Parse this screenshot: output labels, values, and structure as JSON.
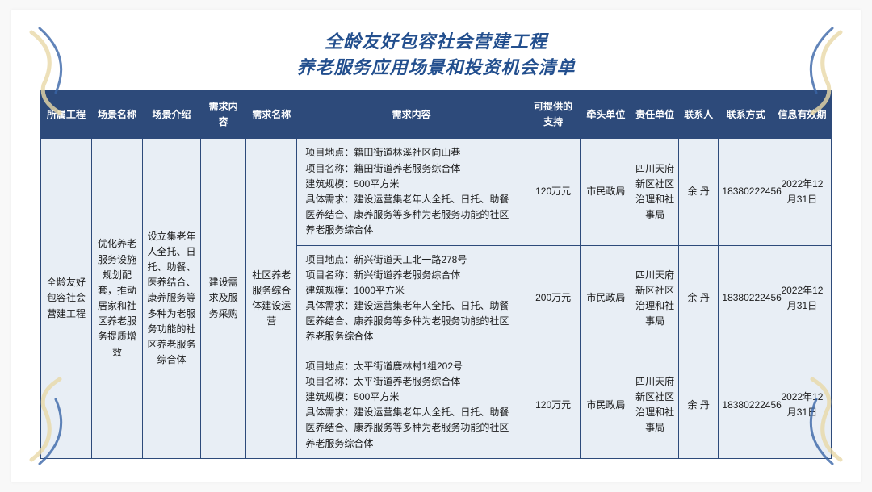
{
  "colors": {
    "title": "#234f8e",
    "header_bg": "#2d4a7a",
    "cell_bg": "#e8eef5",
    "border": "#2d4a7a",
    "deco1": "#e9d9a8",
    "deco2": "#3a66a8"
  },
  "title": {
    "line1": "全龄友好包容社会营建工程",
    "line2": "养老服务应用场景和投资机会清单"
  },
  "columns": [
    "所属工程",
    "场景名称",
    "场景介绍",
    "需求内容",
    "需求名称",
    "需求内容",
    "可提供的支持",
    "牵头单位",
    "责任单位",
    "联系人",
    "联系方式",
    "信息有效期"
  ],
  "merged": {
    "project": "全龄友好包容社会营建工程",
    "scene_name": "优化养老服务设施规划配套，推动居家和社区养老服务提质增效",
    "scene_intro": "设立集老年人全托、日托、助餐、医养结合、康养服务等多种为老服务功能的社区养老服务综合体",
    "req_type": "建设需求及服务采购",
    "req_name": "社区养老服务综合体建设运营"
  },
  "rows": [
    {
      "content": "项目地点：籍田街道林溪社区向山巷\n项目名称：籍田街道养老服务综合体\n建筑规模：500平方米\n具体需求：建设运营集老年人全托、日托、助餐医养结合、康养服务等多种为老服务功能的社区养老服务综合体",
      "support": "120万元",
      "lead": "市民政局",
      "resp": "四川天府新区社区治理和社事局",
      "person": "余 丹",
      "tel": "18380222456",
      "valid": "2022年12月31日"
    },
    {
      "content": "项目地点：新兴街道天工北一路278号\n项目名称：新兴街道养老服务综合体\n建筑规模：1000平方米\n具体需求：建设运营集老年人全托、日托、助餐医养结合、康养服务等多种为老服务功能的社区养老服务综合体",
      "support": "200万元",
      "lead": "市民政局",
      "resp": "四川天府新区社区治理和社事局",
      "person": "余 丹",
      "tel": "18380222456",
      "valid": "2022年12月31日"
    },
    {
      "content": "项目地点：太平街道鹿林村1组202号\n项目名称：太平街道养老服务综合体\n建筑规模：500平方米\n具体需求：建设运营集老年人全托、日托、助餐医养结合、康养服务等多种为老服务功能的社区养老服务综合体",
      "support": "120万元",
      "lead": "市民政局",
      "resp": "四川天府新区社区治理和社事局",
      "person": "余 丹",
      "tel": "18380222456",
      "valid": "2022年12月31日"
    }
  ]
}
